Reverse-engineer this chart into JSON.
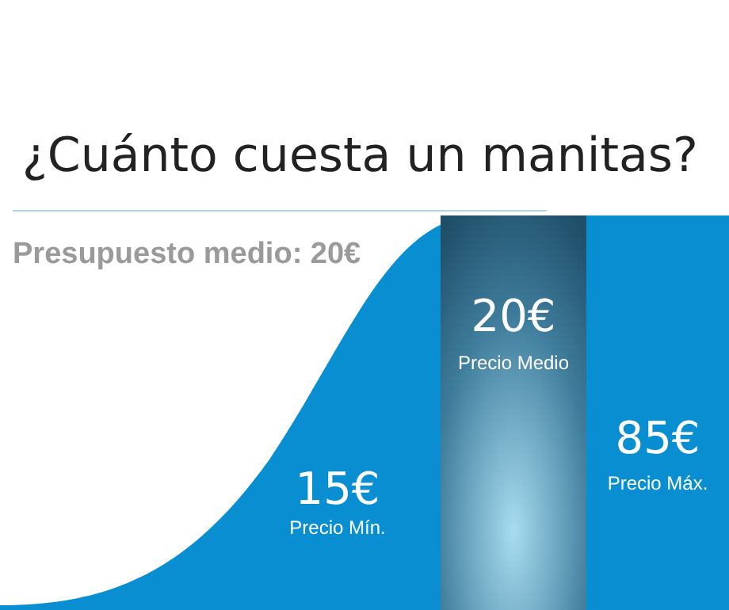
{
  "chart_data": {
    "type": "other",
    "title": "¿Cuánto cuesta un manitas?",
    "subtitle": "Presupuesto medio: 20€",
    "categories": [
      "Precio Mín.",
      "Precio Medio",
      "Precio Máx."
    ],
    "values": [
      15,
      20,
      85
    ],
    "value_labels": [
      "15€",
      "20€",
      "85€"
    ]
  }
}
